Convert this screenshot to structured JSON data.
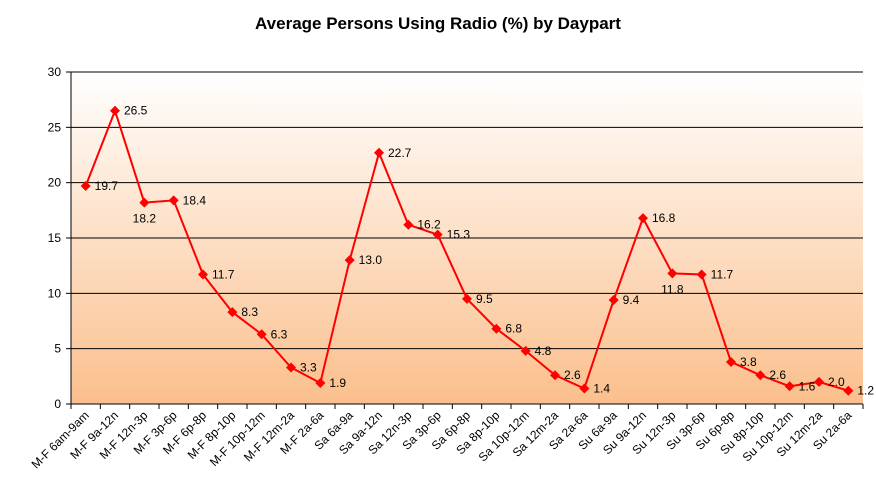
{
  "chart_data": {
    "type": "line",
    "title": "Average Persons Using Radio (%) by Daypart",
    "xlabel": "",
    "ylabel": "",
    "ylim": [
      0,
      30
    ],
    "yticks": [
      0,
      5,
      10,
      15,
      20,
      25,
      30
    ],
    "grid": true,
    "legend": "none",
    "categories": [
      "M-F 6am-9am",
      "M-F 9a-12n",
      "M-F 12n-3p",
      "M-F 3p-6p",
      "M-F 6p-8p",
      "M-F 8p-10p",
      "M-F 10p-12m",
      "M-F 12m-2a",
      "M-F 2a-6a",
      "Sa 6a-9a",
      "Sa 9a-12n",
      "Sa 12n-3p",
      "Sa 3p-6p",
      "Sa 6p-8p",
      "Sa 8p-10p",
      "Sa 10p-12m",
      "Sa 12m-2a",
      "Sa 2a-6a",
      "Su 6a-9a",
      "Su 9a-12n",
      "Su 12n-3p",
      "Su 3p-6p",
      "Su 6p-8p",
      "Su 8p-10p",
      "Su 10p-12m",
      "Su 12m-2a",
      "Su 2a-6a"
    ],
    "series": [
      {
        "values": [
          19.7,
          26.5,
          18.2,
          18.4,
          11.7,
          8.3,
          6.3,
          3.3,
          1.9,
          13.0,
          22.7,
          16.2,
          15.3,
          9.5,
          6.8,
          4.8,
          2.6,
          1.4,
          9.4,
          16.8,
          11.8,
          11.7,
          3.8,
          2.6,
          1.6,
          2.0,
          1.2
        ],
        "data_labels": [
          "19.7",
          "26.5",
          "18.2",
          "18.4",
          "11.7",
          "8.3",
          "6.3",
          "3.3",
          "1.9",
          "13.0",
          "22.7",
          "16.2",
          "15.3",
          "9.5",
          "6.8",
          "4.8",
          "2.6",
          "1.4",
          "9.4",
          "16.8",
          "11.8",
          "11.7",
          "3.8",
          "2.6",
          "1.6",
          "2.0",
          "1.2"
        ],
        "color": "#ff0000"
      }
    ],
    "background_gradient": [
      "#ffffff",
      "#fbbf8c"
    ]
  }
}
